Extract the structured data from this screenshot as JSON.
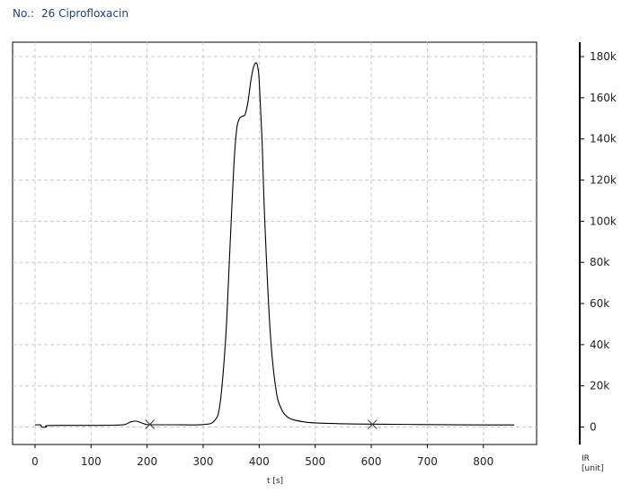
{
  "header": {
    "no_label": "No.:",
    "sample_number": "26",
    "sample_name": "Ciprofloxacin"
  },
  "chart_data": {
    "type": "line",
    "xlabel": "t [s]",
    "ylabel_line1": "IR",
    "ylabel_line2": "[unit]",
    "xlim": [
      -40,
      895
    ],
    "ylim": [
      -8500,
      187000
    ],
    "x_ticks": [
      0,
      100,
      200,
      300,
      400,
      500,
      600,
      700,
      800
    ],
    "x_tick_labels": [
      "0",
      "100",
      "200",
      "300",
      "400",
      "500",
      "600",
      "700",
      "800"
    ],
    "y_ticks": [
      0,
      20000,
      40000,
      60000,
      80000,
      100000,
      120000,
      140000,
      160000,
      180000
    ],
    "y_tick_labels": [
      "0",
      "20k",
      "40k",
      "60k",
      "80k",
      "100k",
      "120k",
      "140k",
      "160k",
      "180k"
    ],
    "grid": true,
    "series": [
      {
        "color": "#000000",
        "x": [
          0,
          10,
          12,
          20,
          22,
          60,
          100,
          140,
          160,
          170,
          180,
          190,
          200,
          220,
          250,
          300,
          320,
          330,
          340,
          345,
          350,
          355,
          360,
          365,
          370,
          375,
          380,
          385,
          390,
          395,
          398,
          400,
          405,
          410,
          420,
          430,
          440,
          450,
          460,
          480,
          500,
          550,
          600,
          700,
          800,
          855
        ],
        "y": [
          1000,
          1000,
          0,
          0,
          700,
          800,
          800,
          900,
          1200,
          2400,
          2900,
          2000,
          1200,
          1100,
          1100,
          1200,
          3000,
          11000,
          42000,
          70000,
          100000,
          128000,
          145000,
          150000,
          151000,
          152000,
          158000,
          168000,
          175000,
          177000,
          174000,
          168000,
          140000,
          100000,
          45000,
          18000,
          8500,
          5000,
          3600,
          2500,
          2000,
          1600,
          1400,
          1200,
          1000,
          1000
        ]
      }
    ],
    "markers": [
      {
        "shape": "x",
        "x": 205,
        "y": 1300
      },
      {
        "shape": "x",
        "x": 602,
        "y": 1300
      }
    ]
  }
}
